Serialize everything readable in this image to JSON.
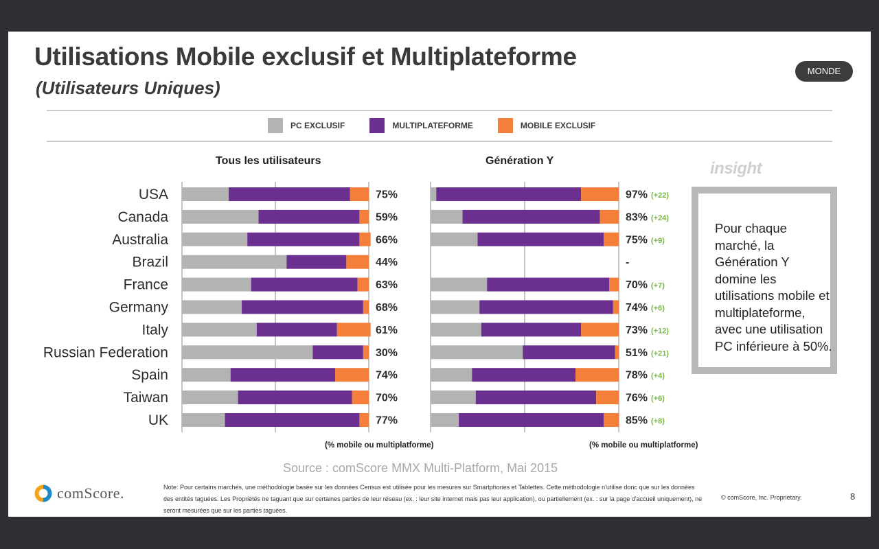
{
  "title": "Utilisations Mobile exclusif et Multiplateforme",
  "subtitle": "(Utilisateurs Uniques)",
  "badge": "MONDE",
  "legend": [
    {
      "label": "PC EXCLUSIF",
      "color": "#b3b3b3"
    },
    {
      "label": "MULTIPLATEFORME",
      "color": "#6b2f8f"
    },
    {
      "label": "MOBILE EXCLUSIF",
      "color": "#f47f3a"
    }
  ],
  "panels": {
    "all": {
      "title": "Tous les utilisateurs",
      "caption": "(% mobile ou multiplatforme)"
    },
    "geny": {
      "title": "Génération Y",
      "caption": "(% mobile ou multiplatforme)"
    }
  },
  "chart_data": {
    "type": "bar",
    "orientation": "horizontal",
    "stacked": "100%",
    "categories": [
      "USA",
      "Canada",
      "Australia",
      "Brazil",
      "France",
      "Germany",
      "Italy",
      "Russian Federation",
      "Spain",
      "Taiwan",
      "UK"
    ],
    "series_names": [
      "PC EXCLUSIF",
      "MULTIPLATEFORME",
      "MOBILE EXCLUSIF"
    ],
    "panels": [
      {
        "title": "Tous les utilisateurs",
        "xlabel": "(% mobile ou multiplatforme)",
        "series": [
          {
            "name": "PC EXCLUSIF",
            "values": [
              25,
              41,
              35,
              56,
              37,
              32,
              40,
              70,
              26,
              30,
              23
            ]
          },
          {
            "name": "MULTIPLATEFORME",
            "values": [
              65,
              54,
              60,
              32,
              57,
              65,
              43,
              27,
              56,
              61,
              72
            ]
          },
          {
            "name": "MOBILE EXCLUSIF",
            "values": [
              10,
              5,
              6,
              12,
              6,
              3,
              18,
              3,
              18,
              9,
              5
            ]
          }
        ],
        "labels": [
          "75%",
          "59%",
          "66%",
          "44%",
          "63%",
          "68%",
          "61%",
          "30%",
          "74%",
          "70%",
          "77%"
        ]
      },
      {
        "title": "Génération Y",
        "xlabel": "(% mobile ou multiplatforme)",
        "series": [
          {
            "name": "PC EXCLUSIF",
            "values": [
              3,
              17,
              25,
              null,
              30,
              26,
              27,
              49,
              22,
              24,
              15
            ]
          },
          {
            "name": "MULTIPLATEFORME",
            "values": [
              77,
              73,
              67,
              null,
              65,
              71,
              53,
              49,
              55,
              64,
              77
            ]
          },
          {
            "name": "MOBILE EXCLUSIF",
            "values": [
              20,
              10,
              8,
              null,
              5,
              3,
              20,
              2,
              23,
              12,
              8
            ]
          }
        ],
        "labels": [
          "97%",
          "83%",
          "75%",
          "-",
          "70%",
          "74%",
          "73%",
          "51%",
          "78%",
          "76%",
          "85%"
        ],
        "deltas": [
          "(+22)",
          "(+24)",
          "(+9)",
          "",
          "(+7)",
          "(+6)",
          "(+12)",
          "(+21)",
          "(+4)",
          "(+6)",
          "(+8)"
        ]
      }
    ]
  },
  "insight": {
    "label": "insight",
    "text": "Pour chaque marché, la Génération Y domine les utilisations mobile et multiplateforme, avec une utilisation PC inférieure à 50%."
  },
  "source": "Source : comScore MMX Multi-Platform, Mai 2015",
  "logo": "comScore.",
  "note": "Note: Pour certains marchés, une méthodologie basée sur les données Census est utilisée pour les mesures sur Smartphones et Tablettes. Cette méthodologie n'utilise donc que sur les données des entités taguées. Les Propriétés ne taguant que sur certaines parties de leur réseau (ex. : leur site internet mais pas leur application), ou partiellement (ex. : sur la page d'accueil uniquement), ne seront mesurées que sur les parties taguées.",
  "copyright": "© comScore, Inc. Proprietary.",
  "page_number": "8"
}
